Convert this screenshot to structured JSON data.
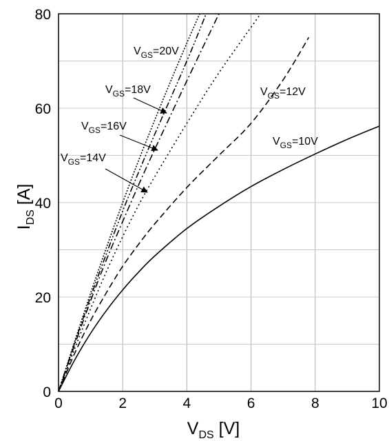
{
  "chart_data": {
    "type": "line",
    "xlabel": {
      "main": "V",
      "sub": "DS",
      "unit": " [V]"
    },
    "ylabel": {
      "main": "I",
      "sub": "DS",
      "unit": " [A]"
    },
    "xlim": [
      0,
      10
    ],
    "ylim": [
      0,
      80
    ],
    "xticks": [
      "0",
      "2",
      "4",
      "6",
      "8",
      "10"
    ],
    "yticks": [
      "0",
      "20",
      "40",
      "60",
      "80"
    ],
    "grid": true,
    "series": [
      {
        "name": "VGS=10V",
        "dash": "solid",
        "x": [
          0,
          0.5,
          1,
          1.5,
          2,
          2.5,
          3,
          4,
          5,
          6,
          7,
          8,
          9,
          10
        ],
        "y": [
          0,
          6.6,
          12.3,
          17.2,
          21.5,
          25.3,
          28.7,
          34.5,
          39.2,
          43.4,
          47.0,
          50.3,
          53.4,
          56.2
        ]
      },
      {
        "name": "VGS=12V",
        "dash": "dashed",
        "x": [
          0,
          0.5,
          1,
          1.5,
          2,
          2.5,
          3,
          4,
          5,
          6,
          7,
          7.8
        ],
        "y": [
          0,
          8.0,
          15.0,
          21.0,
          26.5,
          31.2,
          35.5,
          43.2,
          50.0,
          56.8,
          66.0,
          75.0
        ]
      },
      {
        "name": "VGS=14V",
        "dash": "dotted",
        "x": [
          0,
          0.5,
          1,
          1.5,
          2,
          2.5,
          3,
          4,
          5,
          6.3
        ],
        "y": [
          0,
          9.0,
          17.5,
          25.5,
          32.8,
          39.5,
          45.5,
          56.8,
          67.5,
          80.0
        ]
      },
      {
        "name": "VGS=16V",
        "dash": "dash-dot",
        "x": [
          0,
          0.5,
          1,
          1.5,
          2,
          2.5,
          3,
          4,
          5.0
        ],
        "y": [
          0,
          9.8,
          19.2,
          28.0,
          36.0,
          43.8,
          51.3,
          65.8,
          80.0
        ]
      },
      {
        "name": "VGS=18V",
        "dash": "dash-dot-dot",
        "x": [
          0,
          0.5,
          1,
          1.5,
          2,
          2.5,
          3,
          4,
          4.6
        ],
        "y": [
          0,
          10.2,
          20.0,
          29.3,
          38.2,
          46.5,
          54.5,
          70.0,
          80.0
        ]
      },
      {
        "name": "VGS=20V",
        "dash": "dense-dotted",
        "x": [
          0,
          0.5,
          1,
          1.5,
          2,
          2.5,
          3,
          3.5,
          4,
          4.4
        ],
        "y": [
          0,
          10.5,
          20.8,
          30.6,
          40.0,
          49.0,
          57.5,
          65.8,
          73.8,
          80.0
        ]
      }
    ],
    "annotations": [
      {
        "main": "V",
        "sub": "GS",
        "rest": "=20V",
        "arrow": false
      },
      {
        "main": "V",
        "sub": "GS",
        "rest": "=18V",
        "arrow": true
      },
      {
        "main": "V",
        "sub": "GS",
        "rest": "=16V",
        "arrow": true
      },
      {
        "main": "V",
        "sub": "GS",
        "rest": "=14V",
        "arrow": true
      },
      {
        "main": "V",
        "sub": "GS",
        "rest": "=12V",
        "arrow": false
      },
      {
        "main": "V",
        "sub": "GS",
        "rest": "=10V",
        "arrow": false
      }
    ]
  }
}
